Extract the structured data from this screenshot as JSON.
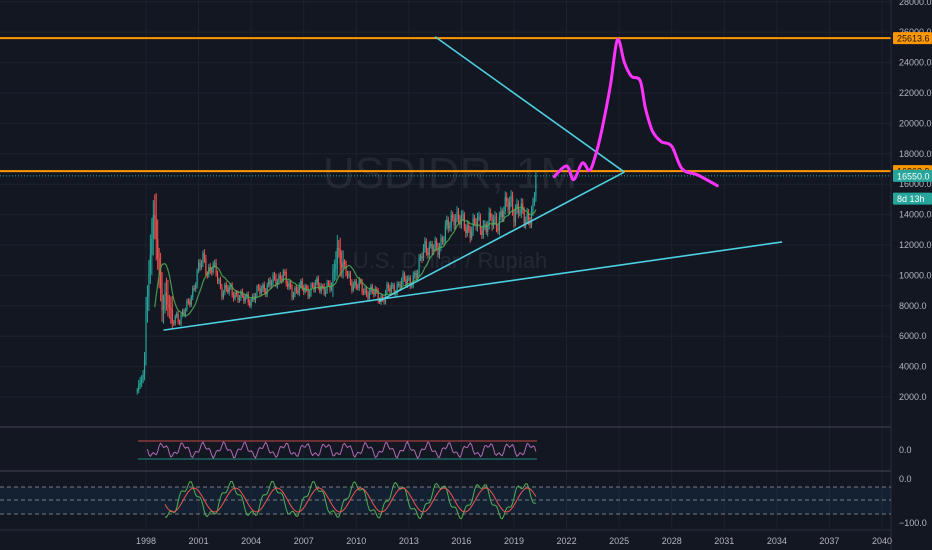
{
  "chart_data": {
    "type": "candlestick",
    "symbol": "USDIDR, 1M",
    "description": "U.S. Dollar / Rupiah",
    "price_axis": {
      "ticks": [
        2000,
        4000,
        6000,
        8000,
        10000,
        12000,
        14000,
        16000,
        18000,
        20000,
        22000,
        24000,
        26000,
        28000
      ],
      "tick_labels": [
        "2000.0",
        "4000.0",
        "6000.0",
        "8000.0",
        "10000.0",
        "12000.0",
        "14000.0",
        "16000.0",
        "18000.0",
        "20000.0",
        "22000.0",
        "24000.0",
        "26000.0",
        "28000.0"
      ],
      "range": [
        0,
        28000
      ]
    },
    "time_axis": {
      "ticks": [
        1998,
        2001,
        2004,
        2007,
        2010,
        2013,
        2016,
        2019,
        2022,
        2025,
        2028,
        2031,
        2034,
        2037,
        2040
      ],
      "tick_labels": [
        "1998",
        "2001",
        "2004",
        "2007",
        "2010",
        "2013",
        "2016",
        "2019",
        "2022",
        "2025",
        "2028",
        "2031",
        "2034",
        "2037",
        "2040"
      ]
    },
    "price_tags": [
      {
        "label": "25613.6",
        "value": 25613.6,
        "color": "#ff9800",
        "text_color": "#131722"
      },
      {
        "label": "16863.9",
        "value": 16863.9,
        "color": "#ff9800",
        "text_color": "#131722"
      },
      {
        "label": "16550.0",
        "value": 16550,
        "color": "#26a69a",
        "text_color": "#ffffff"
      },
      {
        "label": "8d 13h",
        "value": 15050,
        "color": "#26a69a",
        "text_color": "#ffffff"
      }
    ],
    "horizontal_lines": [
      {
        "value": 25613.6,
        "color": "#ff9800"
      },
      {
        "value": 16863.9,
        "color": "#ff9800"
      }
    ],
    "last_price": 16550,
    "candles_monthly_close": [
      [
        1997.5,
        2450
      ],
      [
        1997.9,
        3600
      ],
      [
        1998.0,
        8000
      ],
      [
        1998.2,
        10500
      ],
      [
        1998.4,
        14000
      ],
      [
        1998.5,
        13000
      ],
      [
        1998.7,
        11000
      ],
      [
        1998.9,
        8000
      ],
      [
        1999.1,
        8800
      ],
      [
        1999.3,
        8000
      ],
      [
        1999.5,
        6800
      ],
      [
        1999.7,
        7500
      ],
      [
        1999.9,
        7100
      ],
      [
        2000.2,
        7500
      ],
      [
        2000.5,
        8500
      ],
      [
        2000.8,
        9500
      ],
      [
        2001.0,
        10300
      ],
      [
        2001.3,
        11300
      ],
      [
        2001.5,
        10300
      ],
      [
        2001.8,
        10400
      ],
      [
        2002.0,
        10200
      ],
      [
        2002.3,
        9100
      ],
      [
        2002.6,
        9000
      ],
      [
        2002.9,
        8900
      ],
      [
        2003.2,
        8800
      ],
      [
        2003.5,
        8400
      ],
      [
        2003.8,
        8500
      ],
      [
        2004.0,
        8450
      ],
      [
        2004.3,
        8700
      ],
      [
        2004.6,
        9200
      ],
      [
        2004.9,
        9300
      ],
      [
        2005.2,
        9500
      ],
      [
        2005.5,
        9800
      ],
      [
        2005.8,
        10200
      ],
      [
        2006.0,
        9400
      ],
      [
        2006.3,
        9000
      ],
      [
        2006.6,
        9100
      ],
      [
        2006.9,
        9100
      ],
      [
        2007.2,
        9100
      ],
      [
        2007.5,
        9200
      ],
      [
        2007.8,
        9300
      ],
      [
        2008.0,
        9300
      ],
      [
        2008.3,
        9200
      ],
      [
        2008.6,
        9150
      ],
      [
        2008.8,
        11000
      ],
      [
        2008.9,
        12000
      ],
      [
        2009.0,
        11600
      ],
      [
        2009.2,
        10500
      ],
      [
        2009.4,
        10200
      ],
      [
        2009.6,
        9800
      ],
      [
        2009.9,
        9400
      ],
      [
        2010.2,
        9200
      ],
      [
        2010.5,
        9000
      ],
      [
        2010.8,
        8950
      ],
      [
        2011.0,
        8800
      ],
      [
        2011.3,
        8600
      ],
      [
        2011.5,
        8500
      ],
      [
        2011.8,
        9000
      ],
      [
        2012.0,
        9100
      ],
      [
        2012.3,
        9300
      ],
      [
        2012.6,
        9500
      ],
      [
        2012.9,
        9700
      ],
      [
        2013.2,
        9800
      ],
      [
        2013.5,
        10000
      ],
      [
        2013.7,
        11400
      ],
      [
        2013.9,
        12200
      ],
      [
        2014.2,
        11500
      ],
      [
        2014.5,
        11800
      ],
      [
        2014.8,
        12200
      ],
      [
        2015.0,
        12600
      ],
      [
        2015.3,
        13300
      ],
      [
        2015.6,
        14200
      ],
      [
        2015.8,
        13700
      ],
      [
        2016.0,
        13400
      ],
      [
        2016.3,
        13200
      ],
      [
        2016.6,
        13100
      ],
      [
        2016.9,
        13400
      ],
      [
        2017.2,
        13300
      ],
      [
        2017.5,
        13350
      ],
      [
        2017.8,
        13500
      ],
      [
        2018.0,
        13600
      ],
      [
        2018.3,
        14000
      ],
      [
        2018.6,
        14500
      ],
      [
        2018.8,
        15200
      ],
      [
        2019.0,
        14200
      ],
      [
        2019.3,
        14100
      ],
      [
        2019.6,
        14000
      ],
      [
        2019.9,
        13900
      ],
      [
        2020.1,
        14000
      ],
      [
        2020.25,
        16550
      ]
    ],
    "indicators": [
      {
        "name": "oscillator-1",
        "zero_label": "0.0",
        "upper_level_color": "#ef5350",
        "lower_level_color": "#26a69a"
      },
      {
        "name": "oscillator-2",
        "top_label": "0.0",
        "bottom_label": "−100.0"
      }
    ],
    "drawings": [
      {
        "type": "trendline",
        "color": "#4dd0e1",
        "points": [
          [
            1999.0,
            6400
          ],
          [
            2034.3,
            12200
          ]
        ]
      },
      {
        "type": "trendline",
        "color": "#4dd0e1",
        "points": [
          [
            2011.3,
            8300
          ],
          [
            2025.3,
            16800
          ]
        ]
      },
      {
        "type": "trendline",
        "color": "#4dd0e1",
        "points": [
          [
            2014.5,
            25700
          ],
          [
            2025.3,
            16800
          ]
        ]
      },
      {
        "type": "projection",
        "color": "#ff33ff",
        "points": [
          [
            2021.3,
            16500
          ],
          [
            2022.0,
            17200
          ],
          [
            2022.4,
            16300
          ],
          [
            2022.9,
            17400
          ],
          [
            2023.3,
            16900
          ],
          [
            2023.6,
            17700
          ],
          [
            2024.0,
            19500
          ],
          [
            2024.5,
            22500
          ],
          [
            2024.9,
            25500
          ],
          [
            2025.3,
            24000
          ],
          [
            2025.7,
            23100
          ],
          [
            2026.2,
            22800
          ],
          [
            2026.5,
            21000
          ],
          [
            2026.9,
            19500
          ],
          [
            2027.4,
            18800
          ],
          [
            2028.0,
            18500
          ],
          [
            2028.6,
            17000
          ],
          [
            2029.5,
            16600
          ],
          [
            2030.6,
            15900
          ]
        ]
      }
    ]
  }
}
